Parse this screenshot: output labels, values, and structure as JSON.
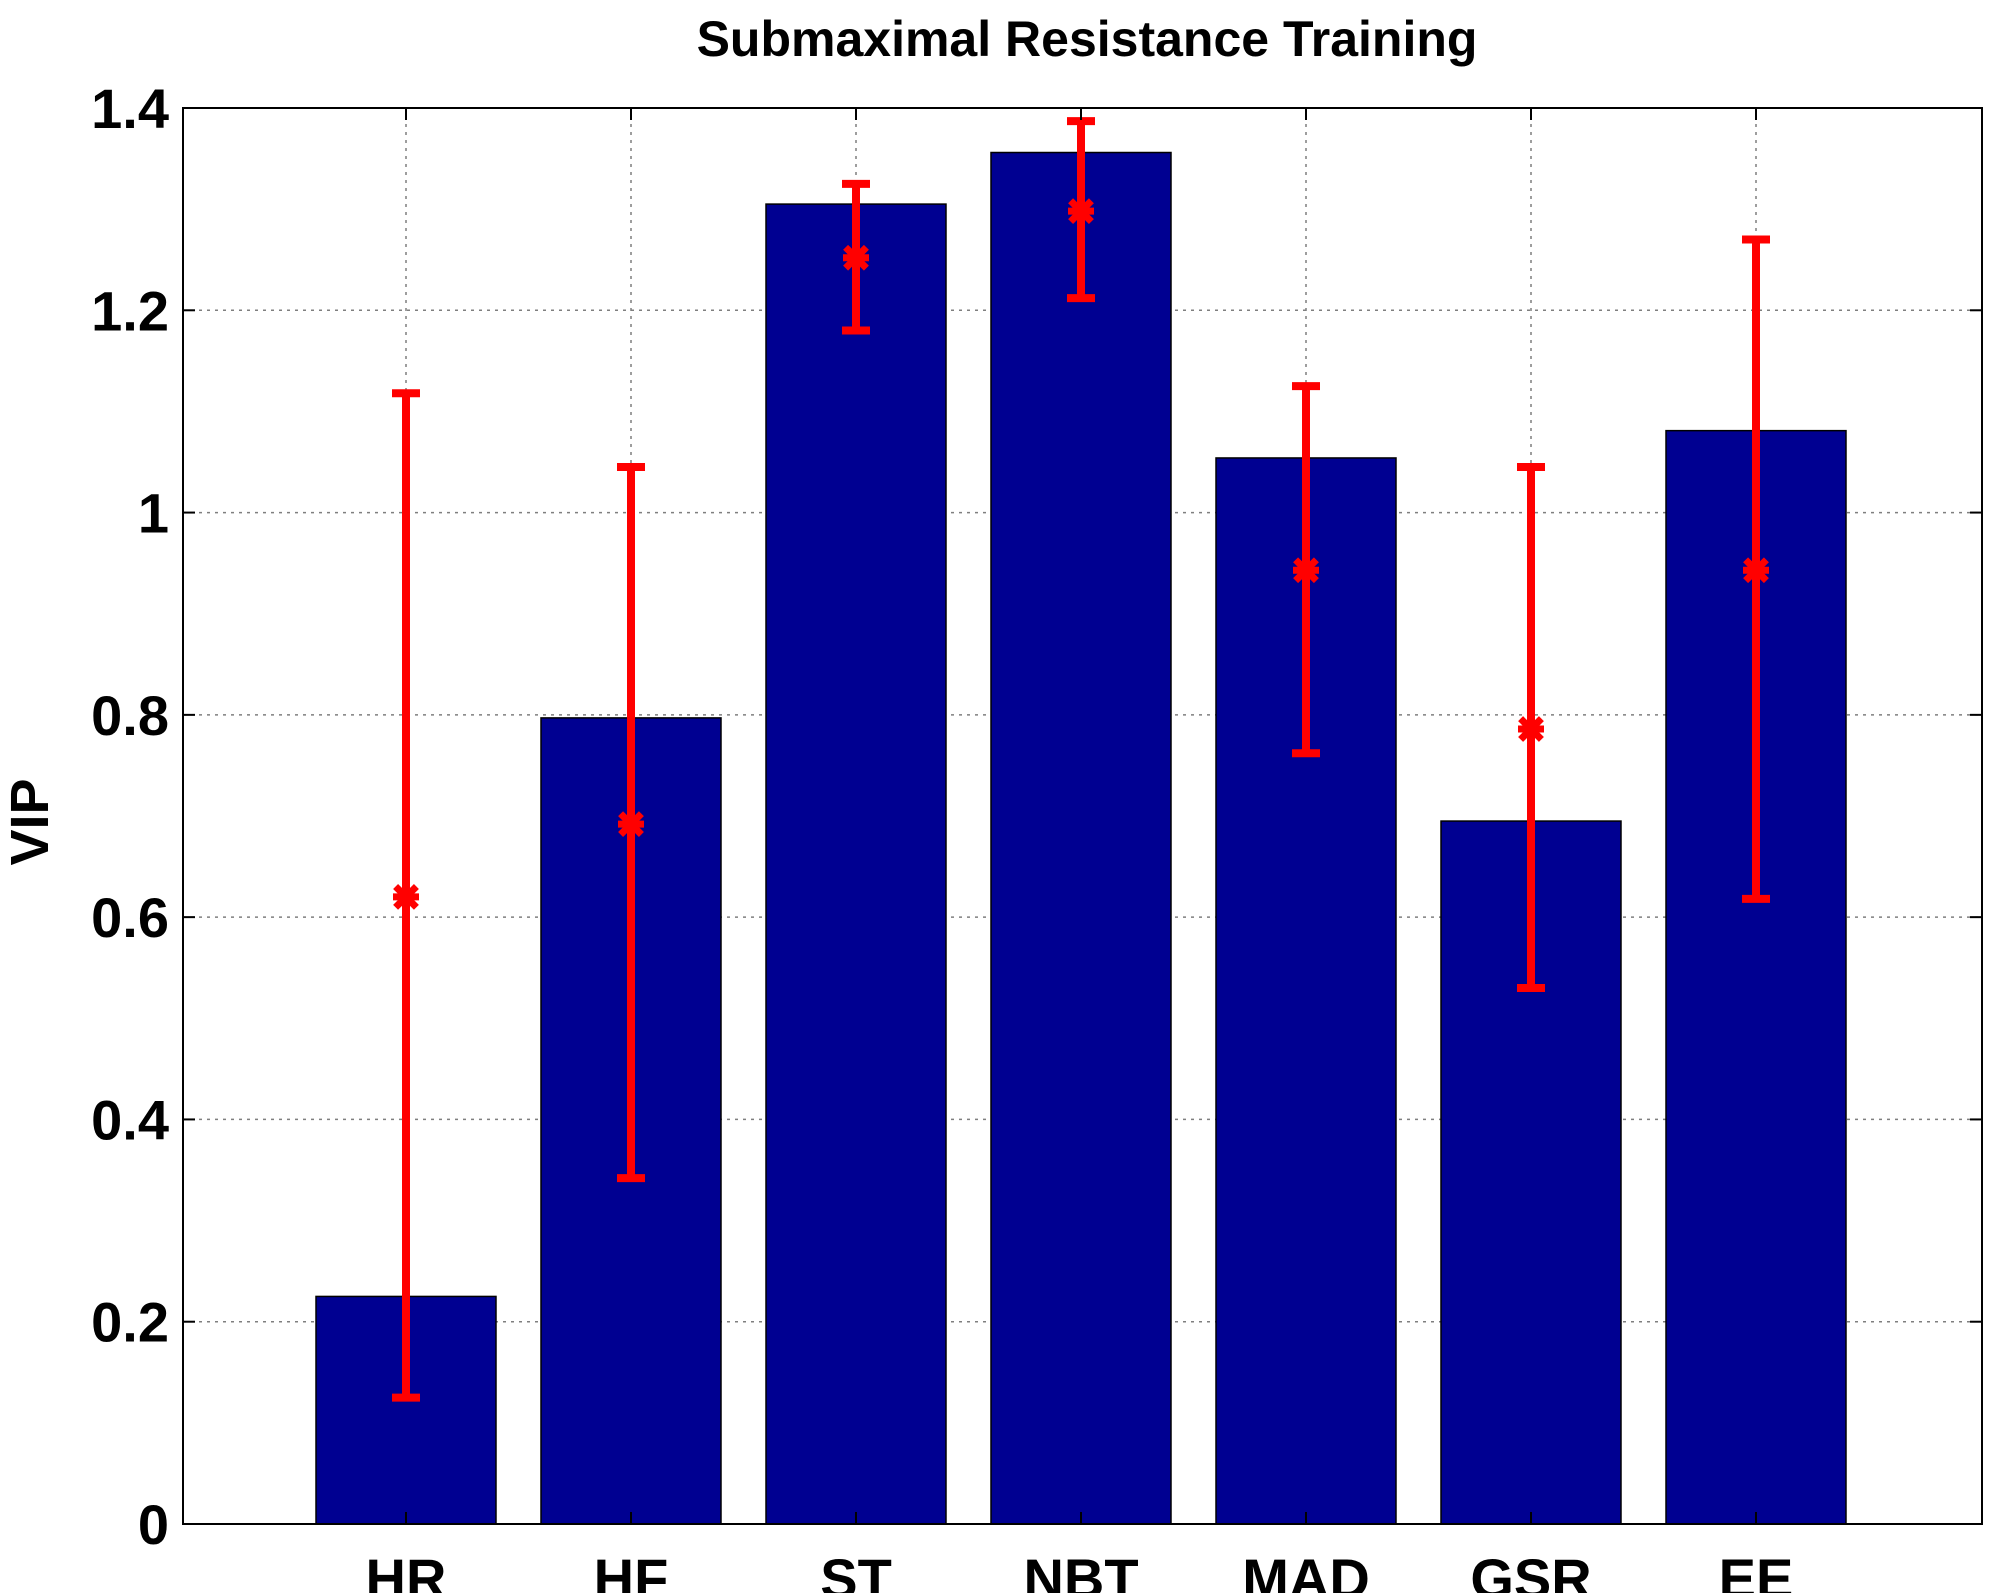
{
  "chart_data": {
    "type": "bar",
    "title": "Submaximal Resistance Training",
    "xlabel": "",
    "ylabel": "VIP",
    "categories": [
      "HR",
      "HF",
      "ST",
      "NBT",
      "MAD",
      "GSR",
      "EE"
    ],
    "series": [
      {
        "name": "VIP",
        "values": [
          0.225,
          0.797,
          1.305,
          1.356,
          1.054,
          0.695,
          1.081
        ]
      }
    ],
    "error_series": {
      "center": [
        0.62,
        0.692,
        1.252,
        1.298,
        0.943,
        0.786,
        0.943
      ],
      "lower": [
        0.125,
        0.342,
        1.18,
        1.212,
        0.762,
        0.53,
        0.618
      ],
      "upper": [
        1.118,
        1.045,
        1.325,
        1.387,
        1.125,
        1.045,
        1.27
      ]
    },
    "ylim": [
      0,
      1.4
    ],
    "yticks": [
      0,
      0.2,
      0.4,
      0.6,
      0.8,
      1,
      1.2,
      1.4
    ],
    "ytick_labels": [
      "0",
      "0.2",
      "0.4",
      "0.6",
      "0.8",
      "1",
      "1.2",
      "1.4"
    ],
    "grid": true,
    "colors": {
      "bar": "#000091",
      "error": "#ff0000",
      "grid": "#7f7f7f"
    }
  }
}
